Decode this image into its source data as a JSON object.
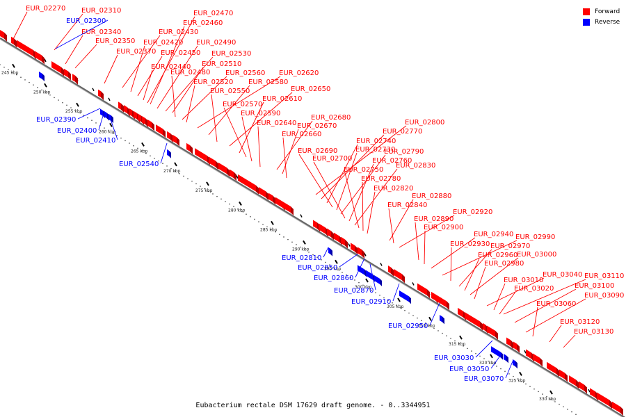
{
  "caption": "Eubacterium rectale DSM 17629 draft genome. - 0..3344951",
  "legend": [
    {
      "label": "Forward",
      "color": "#ff0000"
    },
    {
      "label": "Reverse",
      "color": "#0000ff"
    }
  ],
  "colors": {
    "forward": "#ff0000",
    "forward_dark": "#b40000",
    "reverse": "#0000ff",
    "reverse_dark": "#0000a8",
    "backbone": "#666666"
  },
  "scale_labels": [
    "245 kbp",
    "250 kbp",
    "255 kbp",
    "260 kbp",
    "265 kbp",
    "270 kbp",
    "275 kbp",
    "280 kbp",
    "285 kbp",
    "290 kbp",
    "295 kbp",
    "300 kbp",
    "305 kbp",
    "310 kbp",
    "315 kbp",
    "320 kbp",
    "325 kbp",
    "330 kbp"
  ],
  "forward_genes": [
    "EUR_02270",
    "EUR_02310",
    "EUR_02340",
    "EUR_02350",
    "EUR_02370",
    "EUR_02430",
    "EUR_02420",
    "EUR_02450",
    "EUR_02440",
    "EUR_02470",
    "EUR_02460",
    "EUR_02490",
    "EUR_02530",
    "EUR_02510",
    "EUR_02480",
    "EUR_02560",
    "EUR_02520",
    "EUR_02620",
    "EUR_02580",
    "EUR_02550",
    "EUR_02650",
    "EUR_02610",
    "EUR_02570",
    "EUR_02590",
    "EUR_02640",
    "EUR_02680",
    "EUR_02670",
    "EUR_02660",
    "EUR_02800",
    "EUR_02770",
    "EUR_02740",
    "EUR_02690",
    "EUR_02730",
    "EUR_02790",
    "EUR_02700",
    "EUR_02760",
    "EUR_02830",
    "EUR_02750",
    "EUR_02780",
    "EUR_02820",
    "EUR_02880",
    "EUR_02840",
    "EUR_02920",
    "EUR_02890",
    "EUR_02900",
    "EUR_02940",
    "EUR_02990",
    "EUR_02930",
    "EUR_02970",
    "EUR_02960",
    "EUR_03000",
    "EUR_02980",
    "EUR_03040",
    "EUR_03110",
    "EUR_03010",
    "EUR_03100",
    "EUR_03020",
    "EUR_03090",
    "EUR_03060",
    "EUR_03120",
    "EUR_03130"
  ],
  "reverse_genes": [
    "EUR_02300",
    "EUR_02390",
    "EUR_02400",
    "EUR_02410",
    "EUR_02540",
    "EUR_02810",
    "EUR_02850",
    "EUR_02860",
    "EUR_02870",
    "EUR_02910",
    "EUR_02950",
    "EUR_03030",
    "EUR_03050",
    "EUR_03070"
  ]
}
